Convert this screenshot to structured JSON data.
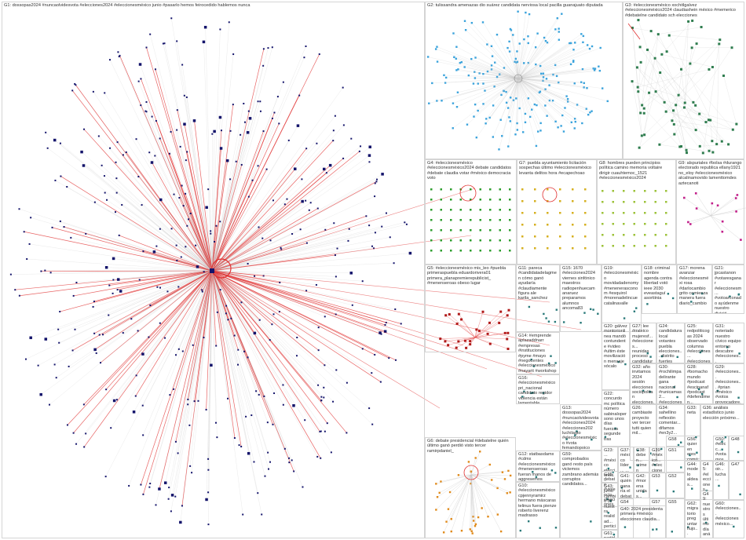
{
  "colors": {
    "background": "#ffffff",
    "border": "#d4d4d4",
    "edge_red": "#e03030",
    "edge_gray": "#c8c8c8",
    "g1_node": "#14146b",
    "g2_node": "#3aa3dc",
    "g3_node": "#2f7d4f",
    "g4_node": "#2e9e2e",
    "g5_node": "#b01a1a",
    "g6_node": "#e08a1a",
    "g7_node": "#d6b020",
    "g8_node": "#9cc23a",
    "g9_node": "#c2208a",
    "misc_node": "#2a7a7a"
  },
  "groups": [
    {
      "id": "G1",
      "label": "G1: dossopas2024 #nuncaolvidesvota #elecciones2024 #eleccionesméxico junio #pasarlo hemos feirocedido hablemos nunca",
      "color": "g1_node",
      "nodes": 420
    },
    {
      "id": "G2",
      "label": "G2: tulissandra amenazas dio suárez candidata nerviosa local pacilla guanajuato diputada",
      "color": "g2_node",
      "nodes": 190
    },
    {
      "id": "G3",
      "label": "G3: #eleccionesméxico xochitlgalvez #eleccionesméxico2024 claudiashein méxico #memerico #debatelne candidato sch elecciones",
      "color": "g3_node",
      "nodes": 70
    },
    {
      "id": "G4",
      "label": "G4: #eleccionesméxico #eleccionesméxico2024 debate candidatos #debate claudia votar #méxico democracia voto",
      "color": "g4_node",
      "nodes": 96
    },
    {
      "id": "G7",
      "label": "G7: puebla ayuntamiento licitación sospechas último #eleccionesméxico levanta delitos hora #ecapechoao",
      "color": "g7_node",
      "nodes": 36
    },
    {
      "id": "G8",
      "label": "G8: hombres pueden principios política camino memoria voltaire dirigir cuauhtemoc_1521 #eleccionesméxico2024",
      "color": "g8_node",
      "nodes": 44
    },
    {
      "id": "G9",
      "label": "G9: alspuriales #bolsa #durango electorado republica ellany1921 no_eloy #eleccionesméxico alcalinamovido lamenttomdes aztecanoti",
      "color": "g9_node",
      "nodes": 12
    },
    {
      "id": "G5",
      "label": "G5: #eleccionesméxico mis_leo #puebla primeraspuebla eduardorivera01 primera_planapremierepublicist_ #menenseroas obeso lugar",
      "color": "g5_node",
      "nodes": 28
    },
    {
      "id": "G6",
      "label": "G6: debate presidencial #debatelne quién último ganó perdió visto tercer ramirpdaniel_",
      "color": "g6_node",
      "nodes": 40
    },
    {
      "id": "G11",
      "label": "G11: pareca #candidatadelagmen cómo ganó ayudaría #claudiamente figura ale karila_sanchez",
      "color": "misc_node",
      "nodes": 10
    },
    {
      "id": "G15",
      "label": "G15: 1670 #elecciones2024 viernes sinfónico maestros radiopenhuecam anaruez preparamos alumnos ancoma83",
      "color": "misc_node",
      "nodes": 6
    },
    {
      "id": "G19",
      "label": "G19: #eleccionesméxico movidadadenomy #menenerasconom #esquirol #morenadelincue catalinavalle",
      "color": "misc_node",
      "nodes": 3
    },
    {
      "id": "G18",
      "label": "G18: criminal nombre agenda contra libertad votó ieee 2030 eveastaguí asortiinia",
      "color": "misc_node",
      "nodes": 3
    },
    {
      "id": "G17",
      "label": "G17: morena avanzar #eleccionesméxi rosa #darlocambio grito comienza manera fuera diario_cambio",
      "color": "misc_node",
      "nodes": 3
    },
    {
      "id": "G21",
      "label": "G21: jpcastanon #votaresganar #eleccionesm... #votoarconado ayúdenme nuestro divisió partidizar democratiendo voto",
      "color": "misc_node",
      "nodes": 3
    },
    {
      "id": "G14",
      "label": "G14: #emprende aplazaddnarr #empresas #instituciones #pyme #mayo #negocentes #eleccionesméxico #nayarit #workshop",
      "color": "misc_node",
      "nodes": 5
    },
    {
      "id": "G16",
      "label": "G16: #eleccionesméxico pri_nacional candidato regidor violencia están lamentable confirmar #elertaach asesinato",
      "color": "misc_node",
      "nodes": 5
    },
    {
      "id": "G20",
      "label": "G20: gálvez montorionlinea mandó contundente #video #ultim éste movilización mensaje xócalo",
      "color": "misc_node",
      "nodes": 2
    },
    {
      "id": "G27",
      "label": "G27: lee #méxico mujeresf... #elecciones... reunidas proceso candidaturas electoral...",
      "color": "misc_node",
      "nodes": 2
    },
    {
      "id": "G24",
      "label": "G24: candidatura local votantes puebla elecciones... distrito fuertes diputad hoy",
      "color": "misc_node",
      "nodes": 2
    },
    {
      "id": "G25",
      "label": "G25: redpoliticogas 2024 observado columna #elecciones... #elecciones eleccionesdemujere...",
      "color": "misc_node",
      "nodes": 2
    },
    {
      "id": "G31",
      "label": "G31: noteriado nuestro cívico equipo entorno descubre #elecciones... importancia...",
      "color": "misc_node",
      "nodes": 2
    },
    {
      "id": "G22",
      "label": "G22: concurdo mc política número sabinalopersono unos días fuerzas segunde tras",
      "color": "misc_node",
      "nodes": 2
    },
    {
      "id": "G32",
      "label": "G32: año invitamos 2024 sesión elecciones sociópolitan elecciones... ciclo",
      "color": "misc_node",
      "nodes": 2
    },
    {
      "id": "G30",
      "label": "G30: #rochilimpa delirante gana nacional #runicamas2... #elecciones...",
      "color": "misc_node",
      "nodes": 2
    },
    {
      "id": "G28",
      "label": "G28: #bomacho mundo #podcast #escipanaf #podcast #defendimen... #elecciones...",
      "color": "misc_node",
      "nodes": 2
    },
    {
      "id": "G29",
      "label": "G29: #elecciones... #elecciones... #prian #méxico #votos provocadore...",
      "color": "misc_node",
      "nodes": 2
    },
    {
      "id": "G13",
      "label": "G13: dossopas2024 #nuncaolvidesvota #elecciones2024 #elecciones202 luchilagto #eleccionesméxico #vota femandopoico elegir sopas",
      "color": "misc_node",
      "nodes": 4
    },
    {
      "id": "G12",
      "label": "G12: statbasdamx #cdmx #eleccionesméxico #menenseroas fueran manos de aggresemos nuevamente ... sudeba",
      "color": "misc_node",
      "nodes": 4
    },
    {
      "id": "G10",
      "label": "G10: #eleccionesméxico cpjennyramirz hermano máscaras telinus fuera pienze roberto liverenz madrasso",
      "color": "misc_node",
      "nodes": 4
    },
    {
      "id": "G23",
      "label": "G23: ... #méxico elecciones...",
      "color": "misc_node",
      "nodes": 2
    },
    {
      "id": "G26",
      "label": "G26: cambiaste proyecto ver tercer tutti quien mil...",
      "color": "misc_node",
      "nodes": 2
    },
    {
      "id": "G34",
      "label": "G34: sahellino reflexión comentar... difamos #en3y2...",
      "color": "misc_node",
      "nodes": 2
    },
    {
      "id": "G33",
      "label": "G33: neta",
      "color": "misc_node",
      "nodes": 2
    },
    {
      "id": "G36",
      "label": "G36: análisis estadístico junio elección próximo...",
      "color": "misc_node",
      "nodes": 2
    },
    {
      "id": "G35",
      "label": "G35: debate #violencia... elecciones...",
      "color": "misc_node",
      "nodes": 2
    },
    {
      "id": "G37",
      "label": "G37: méxico líder ... ...",
      "color": "misc_node",
      "nodes": 1
    },
    {
      "id": "G38",
      "label": "G38: deben... crimen organi...",
      "color": "misc_node",
      "nodes": 1
    },
    {
      "id": "G39",
      "label": "G39: #méxico... #elecciones...",
      "color": "misc_node",
      "nodes": 1
    },
    {
      "id": "G41",
      "label": "G41: quién ganaría el debate",
      "color": "misc_node",
      "nodes": 1
    },
    {
      "id": "G42",
      "label": "G42: #morena unidas...",
      "color": "misc_node",
      "nodes": 1
    },
    {
      "id": "G43",
      "label": "G43: junio cambio 02 nuestra realidad... pertición...",
      "color": "misc_node",
      "nodes": 1
    },
    {
      "id": "G44",
      "label": "G44: modelo aldeas...",
      "color": "misc_node",
      "nodes": 1
    },
    {
      "id": "G45",
      "label": "G45: #elecciones...",
      "color": "misc_node",
      "nodes": 1
    },
    {
      "id": "G46",
      "label": "G46: oir... lucha...",
      "color": "misc_node",
      "nodes": 1
    },
    {
      "id": "G47",
      "label": "G47",
      "color": "misc_node",
      "nodes": 1
    },
    {
      "id": "G48",
      "label": "G48",
      "color": "misc_node",
      "nodes": 1
    },
    {
      "id": "G49",
      "label": "G49: nuestros último día análisis...",
      "color": "misc_node",
      "nodes": 1
    },
    {
      "id": "G50",
      "label": "G50: #elecc... #votamos... #elecciones...",
      "color": "misc_node",
      "nodes": 1
    },
    {
      "id": "G51",
      "label": "G51",
      "color": "misc_node",
      "nodes": 1
    },
    {
      "id": "G52",
      "label": "G52",
      "color": "misc_node",
      "nodes": 1
    },
    {
      "id": "G53",
      "label": "G53",
      "color": "misc_node",
      "nodes": 1
    },
    {
      "id": "G54",
      "label": "G54",
      "color": "misc_node",
      "nodes": 1
    },
    {
      "id": "G55",
      "label": "G55",
      "color": "misc_node",
      "nodes": 1
    },
    {
      "id": "G56",
      "label": "G56: quieren eres común #elecciones...",
      "color": "misc_node",
      "nodes": 1
    },
    {
      "id": "G57",
      "label": "G57",
      "color": "misc_node",
      "nodes": 1
    },
    {
      "id": "G58",
      "label": "G58",
      "color": "misc_node",
      "nodes": 1
    },
    {
      "id": "G40",
      "label": "G40: 2024 presidenta primera #méxico elecciones claudia...",
      "color": "misc_node",
      "nodes": 1
    },
    {
      "id": "G60",
      "label": "G60: #elecciones... #eleccionesméxico...",
      "color": "misc_node",
      "nodes": 1
    },
    {
      "id": "G59",
      "label": "G59: comprobados ganó resto país victemos zambrano además corruptos candidatos...",
      "color": "misc_node",
      "nodes": 1
    },
    {
      "id": "G62",
      "label": "G62: migratorio preguntar flujo...",
      "color": "misc_node",
      "nodes": 1
    },
    {
      "id": "G61",
      "label": "G61: partido... #elecciones...",
      "color": "misc_node",
      "nodes": 1
    }
  ]
}
